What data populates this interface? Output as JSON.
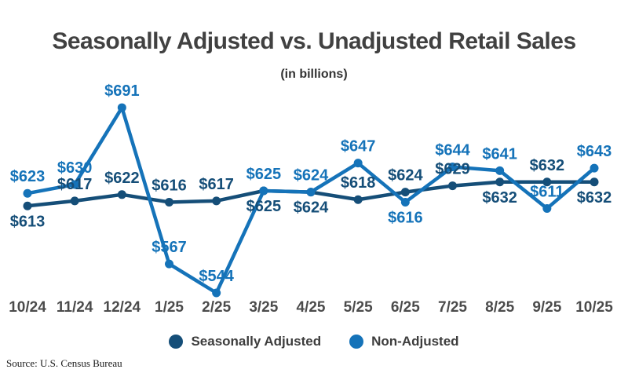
{
  "header": {
    "title": "Seasonally Adjusted vs. Unadjusted Retail Sales",
    "subtitle": "(in billions)"
  },
  "source": "Source: U.S. Census Bureau",
  "colors": {
    "seasonally_adjusted": "#154e78",
    "non_adjusted": "#1573b9",
    "title_text": "#414141",
    "axis_label_text": "#4b4b4b",
    "background": "#ffffff"
  },
  "chart_data": {
    "type": "line",
    "title": "Seasonally Adjusted vs. Unadjusted Retail Sales",
    "subtitle": "(in billions)",
    "value_prefix": "$",
    "categories": [
      "10/24",
      "11/24",
      "12/24",
      "1/25",
      "2/25",
      "3/25",
      "4/25",
      "5/25",
      "6/25",
      "7/25",
      "8/25",
      "9/25",
      "10/25"
    ],
    "series": [
      {
        "name": "Seasonally Adjusted",
        "color": "#154e78",
        "values": [
          613,
          617,
          622,
          616,
          617,
          625,
          624,
          618,
          624,
          629,
          632,
          632,
          632
        ],
        "label_positions": [
          "below",
          "above",
          "above",
          "above",
          "above",
          "below",
          "below",
          "above",
          "above",
          "above",
          "below",
          "above",
          "below"
        ]
      },
      {
        "name": "Non-Adjusted",
        "color": "#1573b9",
        "values": [
          623,
          630,
          691,
          567,
          544,
          625,
          624,
          647,
          616,
          644,
          641,
          611,
          643
        ],
        "label_positions": [
          "above",
          "above",
          "above",
          "above",
          "above",
          "above",
          "above",
          "above",
          "below",
          "above",
          "above",
          "above",
          "above"
        ]
      }
    ],
    "xlabel": "",
    "ylabel": "",
    "ylim": [
      530,
      700
    ],
    "grid": false,
    "legend_position": "bottom",
    "data_labels": true
  },
  "legend": {
    "items": [
      {
        "label": "Seasonally Adjusted",
        "color_key": "seasonally_adjusted"
      },
      {
        "label": "Non-Adjusted",
        "color_key": "non_adjusted"
      }
    ]
  }
}
